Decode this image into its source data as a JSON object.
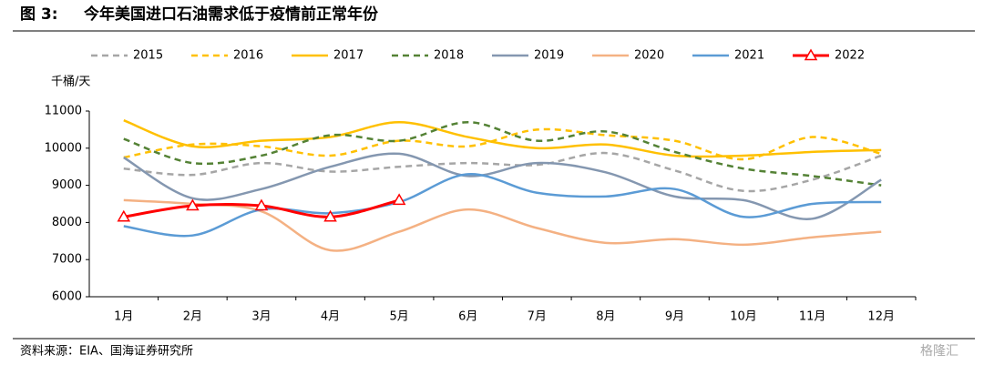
{
  "chart_data": {
    "type": "line",
    "figure_label": "图 3:",
    "title": "今年美国进口石油需求低于疫情前正常年份",
    "y_unit": "千桶/天",
    "source": "资料来源：EIA、国海证券研究所",
    "watermark": "格隆汇",
    "categories": [
      "1月",
      "2月",
      "3月",
      "4月",
      "5月",
      "6月",
      "7月",
      "8月",
      "9月",
      "10月",
      "11月",
      "12月"
    ],
    "ylim": [
      6000,
      11000
    ],
    "yticks": [
      6000,
      7000,
      8000,
      9000,
      10000,
      11000
    ],
    "smooth": true,
    "series": [
      {
        "name": "2015",
        "color": "#a6a6a6",
        "dashed": true,
        "values": [
          9450,
          9280,
          9600,
          9370,
          9500,
          9600,
          9550,
          9870,
          9400,
          8850,
          9150,
          9800
        ]
      },
      {
        "name": "2016",
        "color": "#ffc000",
        "dashed": true,
        "values": [
          9750,
          10100,
          10050,
          9800,
          10200,
          10050,
          10500,
          10350,
          10200,
          9700,
          10300,
          9850
        ]
      },
      {
        "name": "2017",
        "color": "#ffc000",
        "dashed": false,
        "values": [
          10750,
          10050,
          10200,
          10300,
          10700,
          10300,
          10000,
          10100,
          9800,
          9800,
          9900,
          9950
        ]
      },
      {
        "name": "2018",
        "color": "#548235",
        "dashed": true,
        "values": [
          10250,
          9600,
          9800,
          10350,
          10200,
          10700,
          10200,
          10450,
          9900,
          9450,
          9250,
          9000
        ]
      },
      {
        "name": "2019",
        "color": "#8497b0",
        "dashed": false,
        "values": [
          9750,
          8650,
          8900,
          9500,
          9850,
          9250,
          9600,
          9350,
          8700,
          8600,
          8100,
          9150
        ]
      },
      {
        "name": "2020",
        "color": "#f4b183",
        "dashed": false,
        "values": [
          8600,
          8500,
          8300,
          7250,
          7750,
          8350,
          7850,
          7450,
          7550,
          7400,
          7600,
          7750
        ]
      },
      {
        "name": "2021",
        "color": "#5b9bd5",
        "dashed": false,
        "values": [
          7900,
          7650,
          8350,
          8250,
          8550,
          9300,
          8800,
          8700,
          8900,
          8150,
          8500,
          8550
        ]
      },
      {
        "name": "2022",
        "color": "#ff0000",
        "dashed": false,
        "markers": "triangle",
        "values": [
          8150,
          8450,
          8450,
          8150,
          8600,
          null,
          null,
          null,
          null,
          null,
          null,
          null
        ]
      }
    ]
  }
}
